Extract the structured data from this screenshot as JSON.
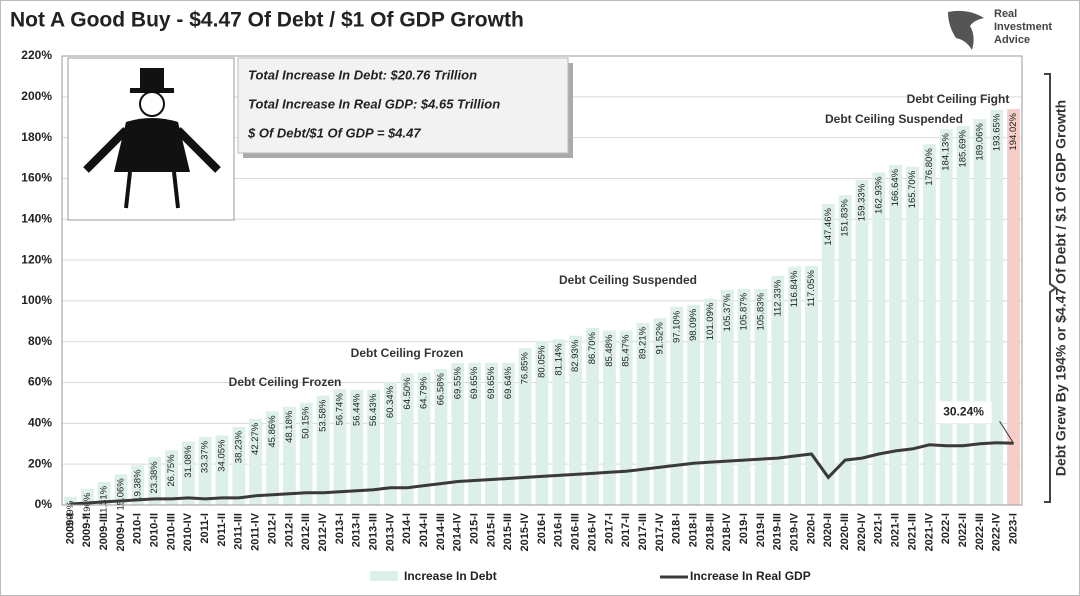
{
  "chart_data": {
    "type": "bar-line",
    "title": "Not A Good Buy - $4.47 Of Debt / $1 Of GDP Growth",
    "logo": [
      "Real",
      "Investment",
      "Advice"
    ],
    "info_box": [
      "Total Increase In Debt:  $20.76 Trillion",
      "Total Increase In Real GDP:  $4.65 Trillion",
      "$ Of Debt/$1 Of GDP = $4.47"
    ],
    "side_note": "Debt Grew By 194% or $4.47 Of Debt / $1 Of GDP Growth",
    "annotations": [
      "Debt Ceiling Frozen",
      "Debt Ceiling Frozen",
      "Debt Ceiling Suspended",
      "Debt Ceiling Suspended",
      "Debt Ceiling Fight"
    ],
    "categories": [
      "2009-I",
      "2009-II",
      "2009-III",
      "2009-IV",
      "2010-I",
      "2010-II",
      "2010-III",
      "2010-IV",
      "2011-I",
      "2011-II",
      "2011-III",
      "2011-IV",
      "2012-I",
      "2012-II",
      "2012-III",
      "2012-IV",
      "2013-I",
      "2013-II",
      "2013-III",
      "2013-IV",
      "2014-I",
      "2014-II",
      "2014-III",
      "2014-IV",
      "2015-I",
      "2015-II",
      "2015-III",
      "2015-IV",
      "2016-I",
      "2016-II",
      "2016-III",
      "2016-IV",
      "2017-I",
      "2017-II",
      "2017-III",
      "2017-IV",
      "2018-I",
      "2018-II",
      "2018-III",
      "2018-IV",
      "2019-I",
      "2019-II",
      "2019-III",
      "2019-IV",
      "2020-I",
      "2020-II",
      "2020-III",
      "2020-IV",
      "2021-I",
      "2021-II",
      "2021-III",
      "2021-IV",
      "2022-I",
      "2022-II",
      "2022-III",
      "2022-IV",
      "2023-I"
    ],
    "series": [
      {
        "name": "Increase In Debt",
        "color": "#dcefe8",
        "highlight_color": "#f6cdc8",
        "values": [
          3.99,
          7.9,
          11.31,
          15.06,
          19.38,
          23.38,
          26.75,
          31.08,
          33.37,
          34.05,
          38.23,
          42.27,
          45.86,
          48.18,
          50.15,
          53.58,
          56.74,
          56.44,
          56.43,
          60.34,
          64.5,
          64.79,
          66.58,
          69.55,
          69.65,
          69.65,
          69.64,
          76.85,
          80.05,
          81.14,
          82.93,
          86.7,
          85.48,
          85.47,
          89.21,
          91.52,
          97.1,
          98.09,
          101.09,
          105.37,
          105.87,
          105.83,
          112.33,
          116.84,
          117.05,
          147.46,
          151.83,
          159.33,
          162.93,
          166.64,
          165.7,
          176.8,
          184.13,
          185.69,
          189.06,
          193.65,
          194.02
        ],
        "value_labels": [
          "3.99%",
          "7.90%",
          "11.31%",
          "15.06%",
          "19.38%",
          "23.38%",
          "26.75%",
          "31.08%",
          "33.37%",
          "34.05%",
          "38.23%",
          "42.27%",
          "45.86%",
          "48.18%",
          "50.15%",
          "53.58%",
          "56.74%",
          "56.44%",
          "56.43%",
          "60.34%",
          "64.50%",
          "64.79%",
          "66.58%",
          "69.55%",
          "69.65%",
          "69.65%",
          "69.64%",
          "76.85%",
          "80.05%",
          "81.14%",
          "82.93%",
          "86.70%",
          "85.48%",
          "85.47%",
          "89.21%",
          "91.52%",
          "97.10%",
          "98.09%",
          "101.09%",
          "105.37%",
          "105.87%",
          "105.83%",
          "112.33%",
          "116.84%",
          "117.05%",
          "147.46%",
          "151.83%",
          "159.33%",
          "162.93%",
          "166.64%",
          "165.70%",
          "176.80%",
          "184.13%",
          "185.69%",
          "189.06%",
          "193.65%",
          "194.02%"
        ]
      },
      {
        "name": "Increase In Real GDP",
        "color": "#3a3a3a",
        "end_label": "30.24%",
        "values": [
          0.5,
          1,
          1.5,
          2,
          2.5,
          3,
          3,
          3.5,
          3,
          3.5,
          3.5,
          4.5,
          5,
          5.5,
          6,
          6,
          6.5,
          7,
          7.5,
          8.5,
          8.5,
          9.5,
          10.5,
          11.5,
          12,
          12.5,
          13,
          13.5,
          14,
          14.5,
          15,
          15.5,
          16,
          16.5,
          17.5,
          18.5,
          19.5,
          20.5,
          21,
          21.5,
          22,
          22.5,
          23,
          24,
          25,
          13.5,
          22,
          23,
          25,
          26.5,
          27.5,
          29.5,
          29,
          29,
          30,
          30.5,
          30.24
        ]
      }
    ],
    "ylim": [
      0,
      220
    ],
    "yticks": [
      {
        "value": 0,
        "label": "0%"
      },
      {
        "value": 20,
        "label": "20%"
      },
      {
        "value": 40,
        "label": "40%"
      },
      {
        "value": 60,
        "label": "60%"
      },
      {
        "value": 80,
        "label": "80%"
      },
      {
        "value": 100,
        "label": "100%"
      },
      {
        "value": 120,
        "label": "120%"
      },
      {
        "value": 140,
        "label": "140%"
      },
      {
        "value": 160,
        "label": "160%"
      },
      {
        "value": 180,
        "label": "180%"
      },
      {
        "value": 200,
        "label": "200%"
      },
      {
        "value": 220,
        "label": "220%"
      }
    ],
    "grid": true
  }
}
